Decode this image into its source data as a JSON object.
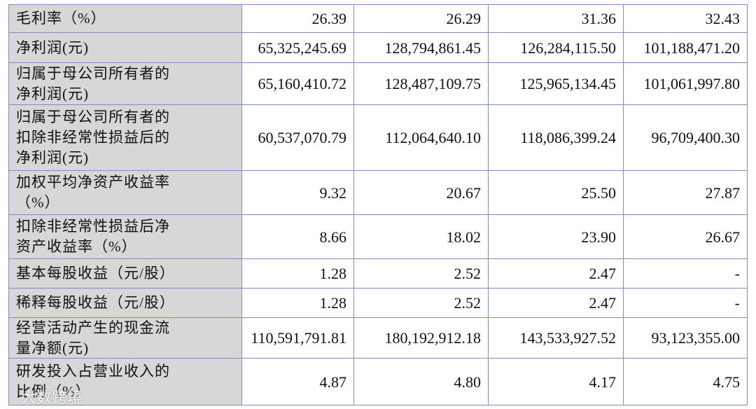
{
  "table": {
    "rows": [
      {
        "label": [
          "毛利率（%）"
        ],
        "values": [
          "26.39",
          "26.29",
          "31.36",
          "32.43"
        ]
      },
      {
        "label": [
          "净利润(元)"
        ],
        "values": [
          "65,325,245.69",
          "128,794,861.45",
          "126,284,115.50",
          "101,188,471.20"
        ]
      },
      {
        "label": [
          "归属于母公司所有者的",
          "净利润(元)"
        ],
        "values": [
          "65,160,410.72",
          "128,487,109.75",
          "125,965,134.45",
          "101,061,997.80"
        ]
      },
      {
        "label": [
          "归属于母公司所有者的",
          "扣除非经常性损益后的",
          "净利润(元)"
        ],
        "values": [
          "60,537,070.79",
          "112,064,640.10",
          "118,086,399.24",
          "96,709,400.30"
        ]
      },
      {
        "label": [
          "加权平均净资产收益率",
          "（%）"
        ],
        "values": [
          "9.32",
          "20.67",
          "25.50",
          "27.87"
        ]
      },
      {
        "label": [
          "扣除非经常性损益后净",
          "资产收益率（%）"
        ],
        "values": [
          "8.66",
          "18.02",
          "23.90",
          "26.67"
        ]
      },
      {
        "label": [
          "基本每股收益（元/股）"
        ],
        "values": [
          "1.28",
          "2.52",
          "2.47",
          "-"
        ]
      },
      {
        "label": [
          "稀释每股收益（元/股）"
        ],
        "values": [
          "1.28",
          "2.52",
          "2.47",
          "-"
        ]
      },
      {
        "label": [
          "经营活动产生的现金流",
          "量净额(元)"
        ],
        "values": [
          "110,591,791.81",
          "180,192,912.18",
          "143,533,927.52",
          "93,123,355.00"
        ]
      },
      {
        "label": [
          "研发投入占营业收入的",
          "比例（%）"
        ],
        "values": [
          "4.87",
          "4.80",
          "4.17",
          "4.75"
        ]
      }
    ]
  },
  "watermark": "大数跨境"
}
